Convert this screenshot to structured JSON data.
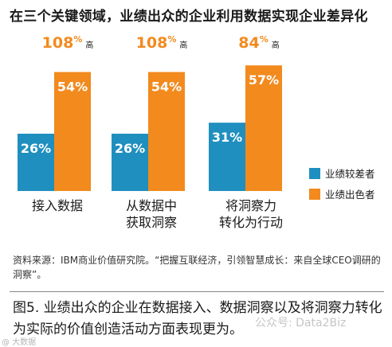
{
  "title": "在三个关键领域，业绩出众的企业利用数据实现企业差异化",
  "chart_data": {
    "type": "bar",
    "categories": [
      [
        "接入数据"
      ],
      [
        "从数据中",
        "获取洞察"
      ],
      [
        "将洞察力",
        "转化为行动"
      ]
    ],
    "series": [
      {
        "name": "业绩较差者",
        "values": [
          26,
          26,
          31
        ],
        "color": "#1f8fbf"
      },
      {
        "name": "业绩出色者",
        "values": [
          54,
          54,
          57
        ],
        "color": "#f28a1e"
      }
    ],
    "value_suffix": "%",
    "annotations": [
      {
        "value": "108",
        "sup": "%",
        "unit": "高"
      },
      {
        "value": "108",
        "sup": "%",
        "unit": "高"
      },
      {
        "value": "84",
        "sup": "%",
        "unit": "高"
      }
    ],
    "annotation_color": "#f28a1e",
    "ylim": [
      0,
      65
    ],
    "legend_position": "right"
  },
  "source": "资料来源：IBM商业价值研究院。“把握互联经济，引领智慧成长：来自全球CEO调研的洞察”。",
  "caption": "图5. 业绩出众的企业在数据接入、数据洞察以及将洞察力转化为实际的价值创造活动方面表现更为。",
  "watermark_left": "@ 大数据",
  "watermark_right": "公众号: Data2Biz"
}
